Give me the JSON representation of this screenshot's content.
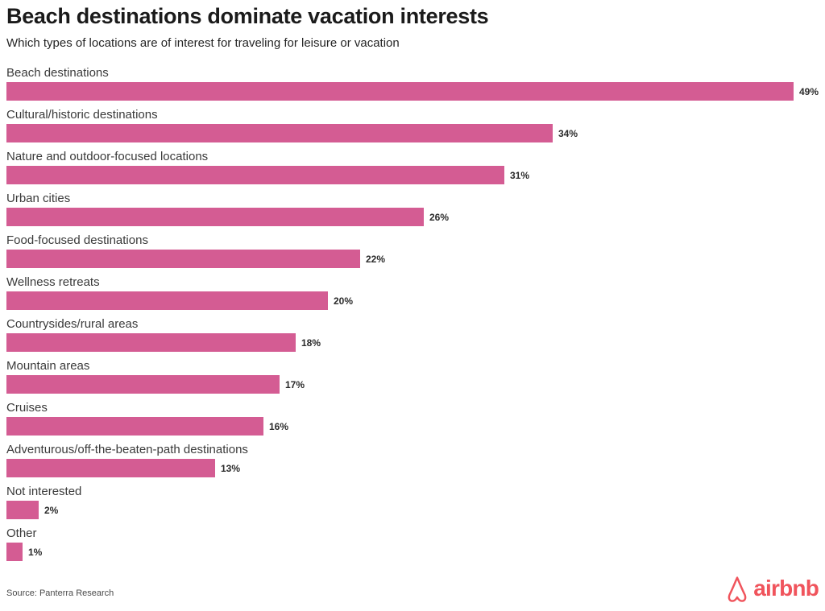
{
  "header": {
    "title": "Beach destinations dominate vacation interests",
    "subtitle": "Which types of locations are of interest for traveling for leisure or vacation"
  },
  "footer": {
    "source": "Source: Panterra Research",
    "brand_name": "airbnb"
  },
  "colors": {
    "bar": "#D45C93",
    "brand": "#F0545C",
    "title_text": "#1b1b1b",
    "label_text": "#3a3a3a",
    "value_text": "#2b2b2b",
    "background": "#ffffff"
  },
  "chart_data": {
    "type": "bar",
    "orientation": "horizontal",
    "title": "Beach destinations dominate vacation interests",
    "subtitle": "Which types of locations are of interest for traveling for leisure or vacation",
    "categories": [
      "Beach destinations",
      "Cultural/historic destinations",
      "Nature and outdoor-focused locations",
      "Urban cities",
      "Food-focused destinations",
      "Wellness retreats",
      "Countrysides/rural areas",
      "Mountain areas",
      "Cruises",
      "Adventurous/off-the-beaten-path destinations",
      "Not interested",
      "Other"
    ],
    "values": [
      49,
      34,
      31,
      26,
      22,
      20,
      18,
      17,
      16,
      13,
      2,
      1
    ],
    "value_labels": [
      "49%",
      "34%",
      "31%",
      "26%",
      "22%",
      "20%",
      "18%",
      "17%",
      "16%",
      "13%",
      "2%",
      "1%"
    ],
    "value_suffix": "%",
    "xlim": [
      0,
      49
    ],
    "grid": false,
    "axis_ticks_visible": false,
    "legend": "none",
    "bar_color": "#D45C93",
    "source": "Source: Panterra Research"
  }
}
